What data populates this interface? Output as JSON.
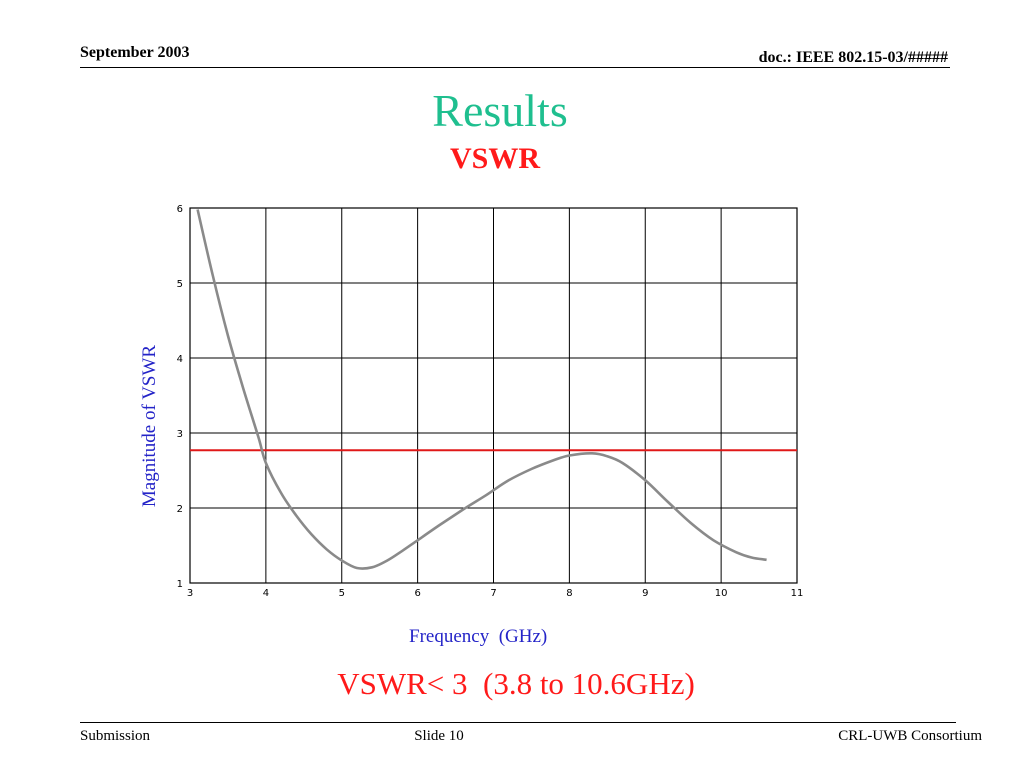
{
  "header": {
    "date": "September 2003",
    "doc_id": "doc.: IEEE 802.15-03/#####"
  },
  "slide": {
    "title": "Results",
    "subtitle": "VSWR",
    "note": "VSWR< 3  (3.8 to 10.6GHz)"
  },
  "footer": {
    "left": "Submission",
    "center": "Slide 10",
    "right": "CRL-UWB Consortium"
  },
  "colors": {
    "title": "#1fbf8f",
    "emphasis": "#ff1a1a",
    "axis_label": "#2424c8",
    "curve": "#8a8a8a",
    "threshold": "#e01818",
    "grid": "#000000"
  },
  "chart_data": {
    "type": "line",
    "title": "",
    "xlabel": "Frequency  (GHz)",
    "ylabel": "Magnitude of VSWR",
    "xlim": [
      3,
      11
    ],
    "ylim": [
      1,
      6
    ],
    "xticks": [
      "3",
      "4",
      "5",
      "6",
      "7",
      "8",
      "9",
      "10",
      "11"
    ],
    "yticks": [
      "1",
      "2",
      "3",
      "4",
      "5",
      "6"
    ],
    "grid": true,
    "legend": "none",
    "series": [
      {
        "x": [
          3.1,
          3.3,
          3.5,
          3.7,
          3.9,
          4.0,
          4.2,
          4.4,
          4.6,
          4.8,
          5.0,
          5.2,
          5.4,
          5.6,
          5.8,
          6.0,
          6.3,
          6.6,
          6.9,
          7.2,
          7.5,
          7.8,
          8.0,
          8.3,
          8.5,
          8.7,
          9.0,
          9.3,
          9.6,
          9.9,
          10.2,
          10.4,
          10.6
        ],
        "y": [
          5.98,
          5.1,
          4.3,
          3.6,
          2.95,
          2.6,
          2.2,
          1.9,
          1.65,
          1.45,
          1.3,
          1.2,
          1.21,
          1.3,
          1.43,
          1.57,
          1.78,
          1.98,
          2.17,
          2.37,
          2.52,
          2.64,
          2.7,
          2.73,
          2.69,
          2.6,
          2.37,
          2.08,
          1.8,
          1.57,
          1.41,
          1.34,
          1.31
        ]
      }
    ],
    "threshold": 2.77
  }
}
